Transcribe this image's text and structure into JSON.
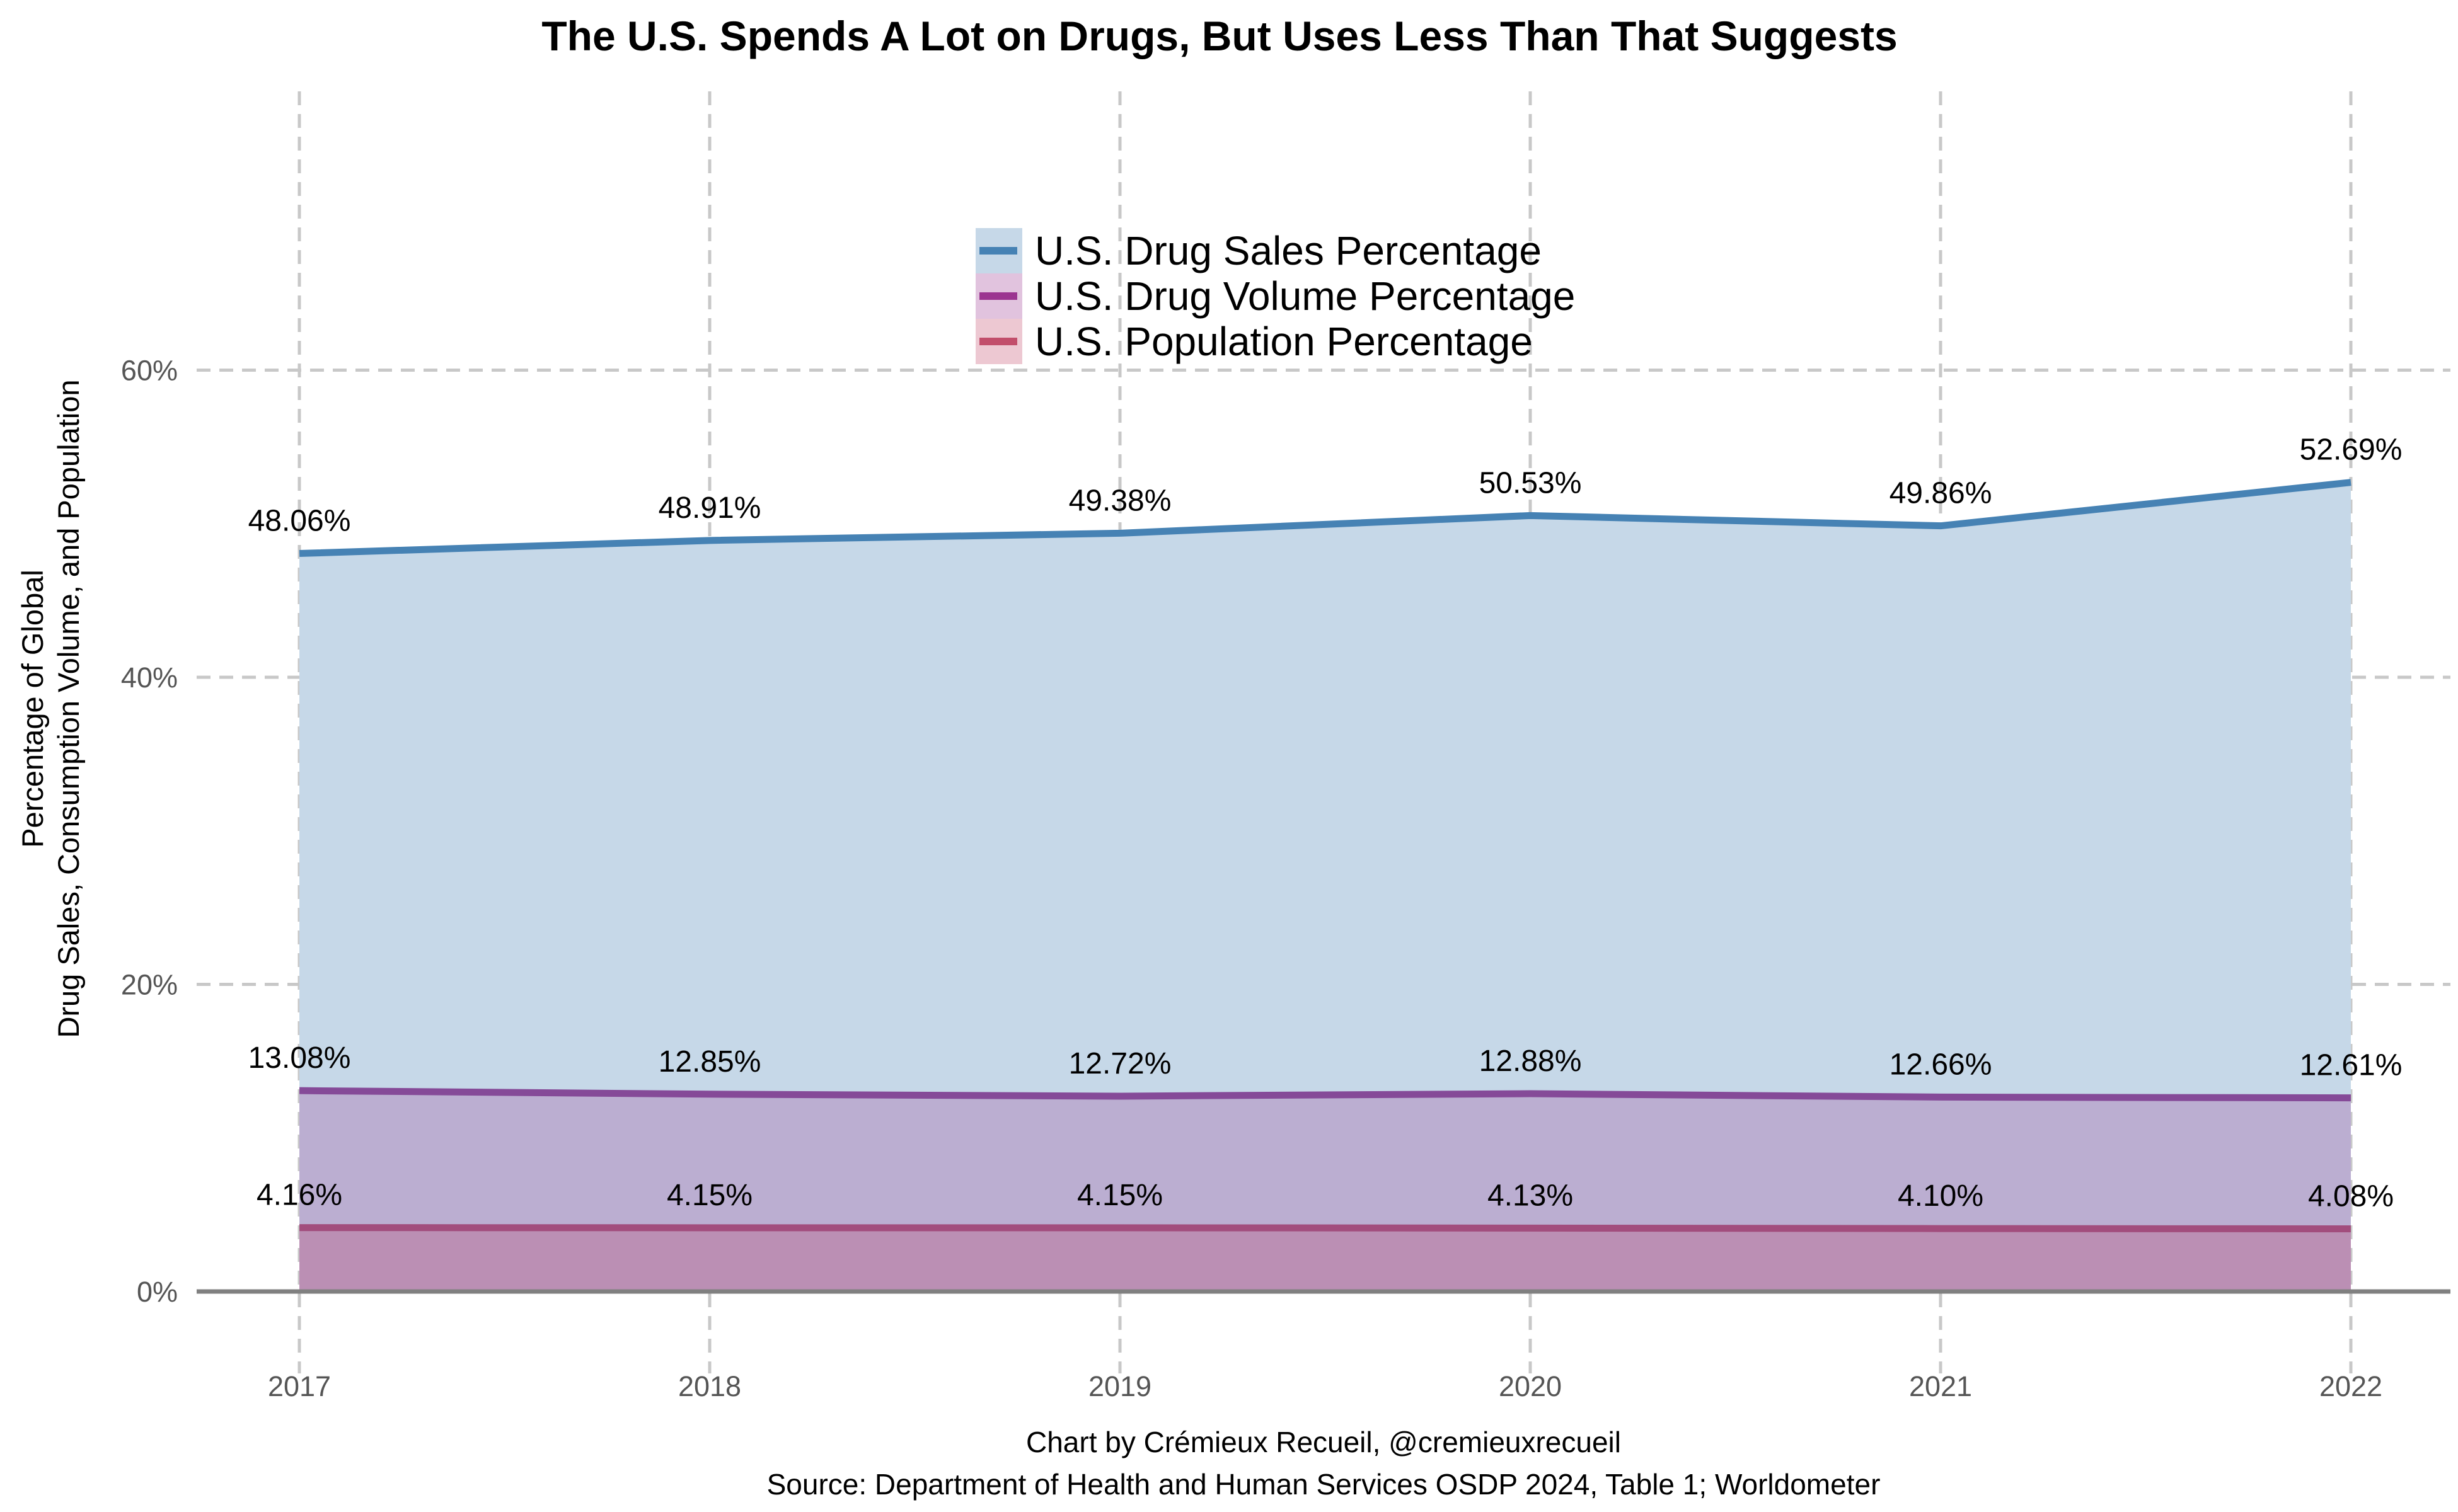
{
  "chart_data": {
    "type": "area",
    "title": "The U.S. Spends A Lot on Drugs, But Uses Less Than That Suggests",
    "ylabel_lines": [
      "Percentage of Global",
      "Drug Sales, Consumption Volume, and Population"
    ],
    "xlabel": "",
    "x": [
      "2017",
      "2018",
      "2019",
      "2020",
      "2021",
      "2022"
    ],
    "ylim": [
      0,
      70
    ],
    "yticks": [
      0,
      20,
      40,
      60
    ],
    "ytick_labels": [
      "0%",
      "20%",
      "40%",
      "60%"
    ],
    "grid": true,
    "legend_position": "top-center",
    "series": [
      {
        "name": "U.S. Drug Sales Percentage",
        "values": [
          48.06,
          48.91,
          49.38,
          50.53,
          49.86,
          52.69
        ],
        "labels": [
          "48.06%",
          "48.91%",
          "49.38%",
          "50.53%",
          "49.86%",
          "52.69%"
        ],
        "line_color": "#4682b4",
        "fill_color": "#c6d8e8"
      },
      {
        "name": "U.S. Drug Volume Percentage",
        "values": [
          13.08,
          12.85,
          12.72,
          12.88,
          12.66,
          12.61
        ],
        "labels": [
          "13.08%",
          "12.85%",
          "12.72%",
          "12.88%",
          "12.66%",
          "12.61%"
        ],
        "line_color": "#854a98",
        "fill_color": "#b8a7cc"
      },
      {
        "name": "U.S. Population Percentage",
        "values": [
          4.16,
          4.15,
          4.15,
          4.13,
          4.1,
          4.08
        ],
        "labels": [
          "4.16%",
          "4.15%",
          "4.15%",
          "4.13%",
          "4.10%",
          "4.08%"
        ],
        "line_color": "#a24d7d",
        "fill_color": "#bb8aaf"
      }
    ],
    "legend_colors": {
      "sales": {
        "patch": "#c6d8e8",
        "line": "#4682b4"
      },
      "volume": {
        "patch": "#e1c3de",
        "line": "#9b3590"
      },
      "population": {
        "patch": "#edc8d2",
        "line": "#c24e6b"
      }
    }
  },
  "footer": {
    "credit": "Chart by Crémieux Recueil, @cremieuxrecueil",
    "source": "Source: Department of Health and Human Services OSDP 2024, Table 1; Worldometer"
  }
}
